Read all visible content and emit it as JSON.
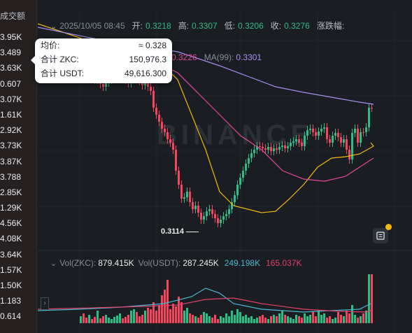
{
  "left_column": {
    "header": "成交额",
    "values": [
      "3.95K",
      "3.489",
      "3.63K",
      "0.607",
      "3.07K",
      "1.61K",
      "2.92K",
      "3.73K",
      "3.87K",
      "3.788",
      "2.85K",
      "1.29K",
      "4.56K",
      "4.08K",
      "3.64K",
      "1.57K",
      "1.50K",
      "1.183",
      "0.614"
    ]
  },
  "info_bar": {
    "date": "2025/10/05 08:45",
    "open_label": "开:",
    "open": "0.3218",
    "high_label": "高:",
    "high": "0.3307",
    "low_label": "低:",
    "low": "0.3206",
    "close_label": "收:",
    "close": "0.3276",
    "change_label": "涨跌幅:"
  },
  "ma": {
    "ma50_value": "0.3226",
    "ma99_label": "MA(99):",
    "ma99_value": "0.3301"
  },
  "tooltip": {
    "avg_label": "均价:",
    "avg_value": "≈ 0.328",
    "total_zkc_label": "合计 ZKC:",
    "total_zkc_value": "150,976.3",
    "total_usdt_label": "合计 USDT:",
    "total_usdt_value": "49,616.300"
  },
  "chart_annotations": {
    "low_price_marker": "0.3114"
  },
  "volume": {
    "zkc_label": "Vol(ZKC):",
    "zkc_value": "879.415K",
    "usdt_label": "Vol(USDT):",
    "usdt_value": "287.245K",
    "ma_value_1": "249.198K",
    "ma_value_2": "165.037K"
  },
  "colors": {
    "up": "#2ebd85",
    "down": "#f6465d",
    "ma_yellow": "#f0b90b",
    "ma_pink": "#e2499c",
    "ma_purple": "#a88ef2",
    "vol_ma_cyan": "#49b9d3",
    "vol_ma_red": "#e2416b"
  },
  "watermark": "BINANCE"
}
